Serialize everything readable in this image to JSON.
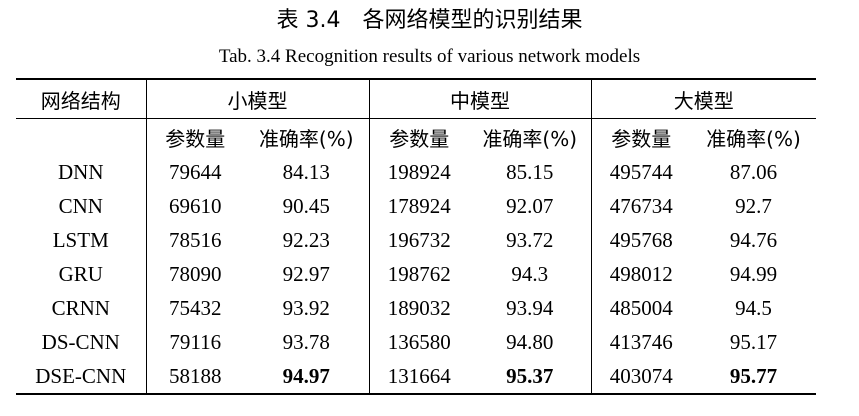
{
  "caption": {
    "cn": "表 3.4　各网络模型的识别结果",
    "en": "Tab. 3.4    Recognition results of various network models"
  },
  "header": {
    "structure": "网络结构",
    "small": "小模型",
    "medium": "中模型",
    "large": "大模型"
  },
  "subheader": {
    "params": "参数量",
    "accuracy": "准确率(%)"
  },
  "rows": [
    {
      "model": "DNN",
      "small_params": "79644",
      "small_acc": "84.13",
      "medium_params": "198924",
      "medium_acc": "85.15",
      "large_params": "495744",
      "large_acc": "87.06"
    },
    {
      "model": "CNN",
      "small_params": "69610",
      "small_acc": "90.45",
      "medium_params": "178924",
      "medium_acc": "92.07",
      "large_params": "476734",
      "large_acc": "92.7"
    },
    {
      "model": "LSTM",
      "small_params": "78516",
      "small_acc": "92.23",
      "medium_params": "196732",
      "medium_acc": "93.72",
      "large_params": "495768",
      "large_acc": "94.76"
    },
    {
      "model": "GRU",
      "small_params": "78090",
      "small_acc": "92.97",
      "medium_params": "198762",
      "medium_acc": "94.3",
      "large_params": "498012",
      "large_acc": "94.99"
    },
    {
      "model": "CRNN",
      "small_params": "75432",
      "small_acc": "93.92",
      "medium_params": "189032",
      "medium_acc": "93.94",
      "large_params": "485004",
      "large_acc": "94.5"
    },
    {
      "model": "DS-CNN",
      "small_params": "79116",
      "small_acc": "93.78",
      "medium_params": "136580",
      "medium_acc": "94.80",
      "large_params": "413746",
      "large_acc": "95.17"
    },
    {
      "model": "DSE-CNN",
      "small_params": "58188",
      "small_acc": "94.97",
      "medium_params": "131664",
      "medium_acc": "95.37",
      "large_params": "403074",
      "large_acc": "95.77"
    }
  ]
}
